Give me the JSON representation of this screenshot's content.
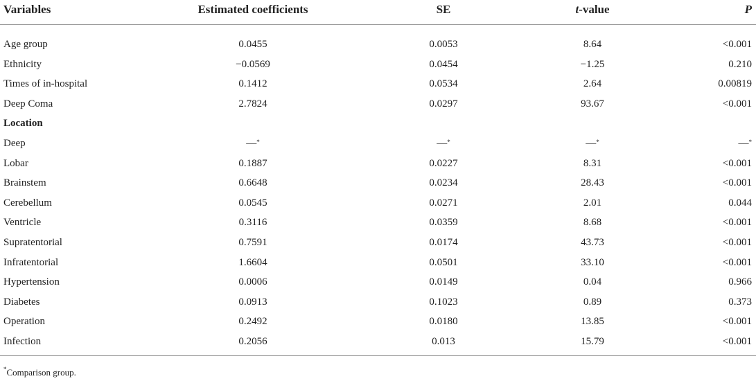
{
  "table": {
    "header": [
      "Variables",
      "Estimated coefficients",
      "SE",
      {
        "italic": "t",
        "text": "-value"
      },
      "P"
    ],
    "rows": [
      [
        "Age group",
        "0.0455",
        "0.0053",
        "8.64",
        "<0.001"
      ],
      [
        "Ethnicity",
        "−0.0569",
        "0.0454",
        "−1.25",
        "0.210"
      ],
      [
        "Times of in-hospital",
        "0.1412",
        "0.0534",
        "2.64",
        "0.00819"
      ],
      [
        "Deep Coma",
        "2.7824",
        "0.0297",
        "93.67",
        "<0.001"
      ],
      [
        "Location"
      ],
      [
        "Deep",
        {
          "text": "—",
          "sup": "*"
        },
        {
          "text": "—",
          "sup": "*"
        },
        {
          "text": "—",
          "sup": "*"
        },
        {
          "text": "—",
          "sup": "*"
        }
      ],
      [
        "Lobar",
        "0.1887",
        "0.0227",
        "8.31",
        "<0.001"
      ],
      [
        "Brainstem",
        "0.6648",
        "0.0234",
        "28.43",
        "<0.001"
      ],
      [
        "Cerebellum",
        "0.0545",
        "0.0271",
        "2.01",
        "0.044"
      ],
      [
        "Ventricle",
        "0.3116",
        "0.0359",
        "8.68",
        "<0.001"
      ],
      [
        "Supratentorial",
        "0.7591",
        "0.0174",
        "43.73",
        "<0.001"
      ],
      [
        "Infratentorial",
        "1.6604",
        "0.0501",
        "33.10",
        "<0.001"
      ],
      [
        "Hypertension",
        "0.0006",
        "0.0149",
        "0.04",
        "0.966"
      ],
      [
        "Diabetes",
        "0.0913",
        "0.1023",
        "0.89",
        "0.373"
      ],
      [
        "Operation",
        "0.2492",
        "0.0180",
        "13.85",
        "<0.001"
      ],
      [
        "Infection",
        "0.2056",
        "0.013",
        "15.79",
        "<0.001"
      ]
    ],
    "footnote": {
      "sup": "*",
      "text": "Comparison group."
    }
  }
}
